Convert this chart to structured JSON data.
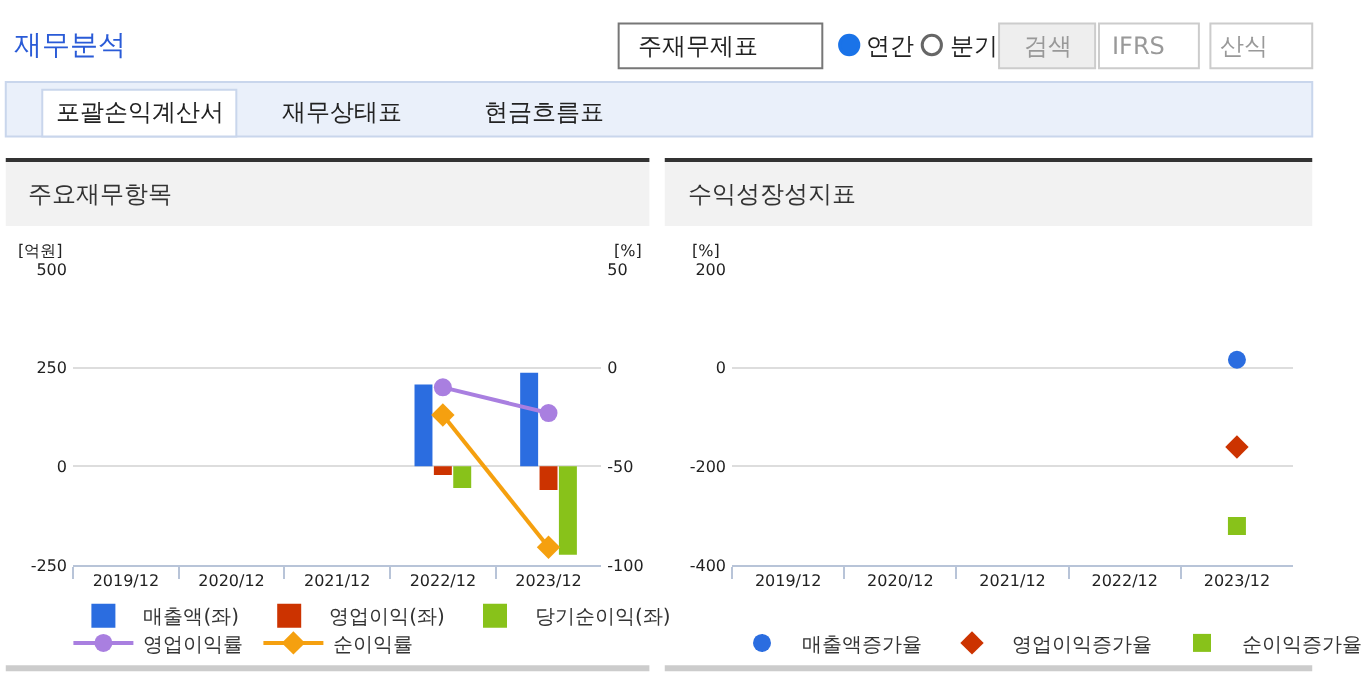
{
  "chart_data": [
    {
      "type": "other",
      "title": "재무분석",
      "annotations": [
        "주재무제표",
        "연간",
        "분기",
        "검색",
        "IFRS",
        "산식",
        "포괄손익계산서",
        "재무상태표",
        "현금흐름표"
      ]
    },
    {
      "type": "bar",
      "title": "주요재무항목",
      "ylabel": "[억원]",
      "y2label": "[%]",
      "categories": [
        "2019/12",
        "2020/12",
        "2021/12",
        "2022/12",
        "2023/12"
      ],
      "series": [
        {
          "name": "매출액(좌)",
          "color": "#2b6de0",
          "values": [
            null,
            null,
            null,
            207,
            237
          ]
        },
        {
          "name": "영업이익(좌)",
          "color": "#cc3300",
          "values": [
            null,
            null,
            null,
            -22,
            -60
          ]
        },
        {
          "name": "당기순이익(좌)",
          "color": "#88c21a",
          "values": [
            null,
            null,
            null,
            -55,
            -224
          ]
        },
        {
          "name": "영업이익률",
          "type": "line",
          "axis": "y2",
          "marker": "circle",
          "color": "#a97fe0",
          "values": [
            null,
            null,
            null,
            -10,
            -23
          ]
        },
        {
          "name": "순이익률",
          "type": "line",
          "axis": "y2",
          "marker": "diamond",
          "color": "#f5a00f",
          "values": [
            null,
            null,
            null,
            -24,
            -91
          ]
        }
      ],
      "ylim": [
        -250,
        500
      ],
      "yticks": [
        -250,
        0,
        250,
        500
      ],
      "y2lim": [
        -100,
        50
      ],
      "y2ticks": [
        -100,
        -50,
        0,
        50
      ],
      "grid": "y",
      "legend": "bottom"
    },
    {
      "type": "scatter",
      "title": "수익성장성지표",
      "ylabel": "[%]",
      "categories": [
        "2019/12",
        "2020/12",
        "2021/12",
        "2022/12",
        "2023/12"
      ],
      "series": [
        {
          "name": "매출액증가율",
          "marker": "circle",
          "color": "#2b6de0",
          "values": [
            null,
            null,
            null,
            null,
            16
          ]
        },
        {
          "name": "영업이익증가율",
          "marker": "diamond",
          "color": "#cc3300",
          "values": [
            null,
            null,
            null,
            null,
            -161
          ]
        },
        {
          "name": "순이익증가율",
          "marker": "square",
          "color": "#88c21a",
          "values": [
            null,
            null,
            null,
            null,
            -321
          ]
        }
      ],
      "ylim": [
        -400,
        200
      ],
      "yticks": [
        -400,
        -200,
        0,
        200
      ],
      "grid": "y",
      "legend": "bottom"
    }
  ]
}
